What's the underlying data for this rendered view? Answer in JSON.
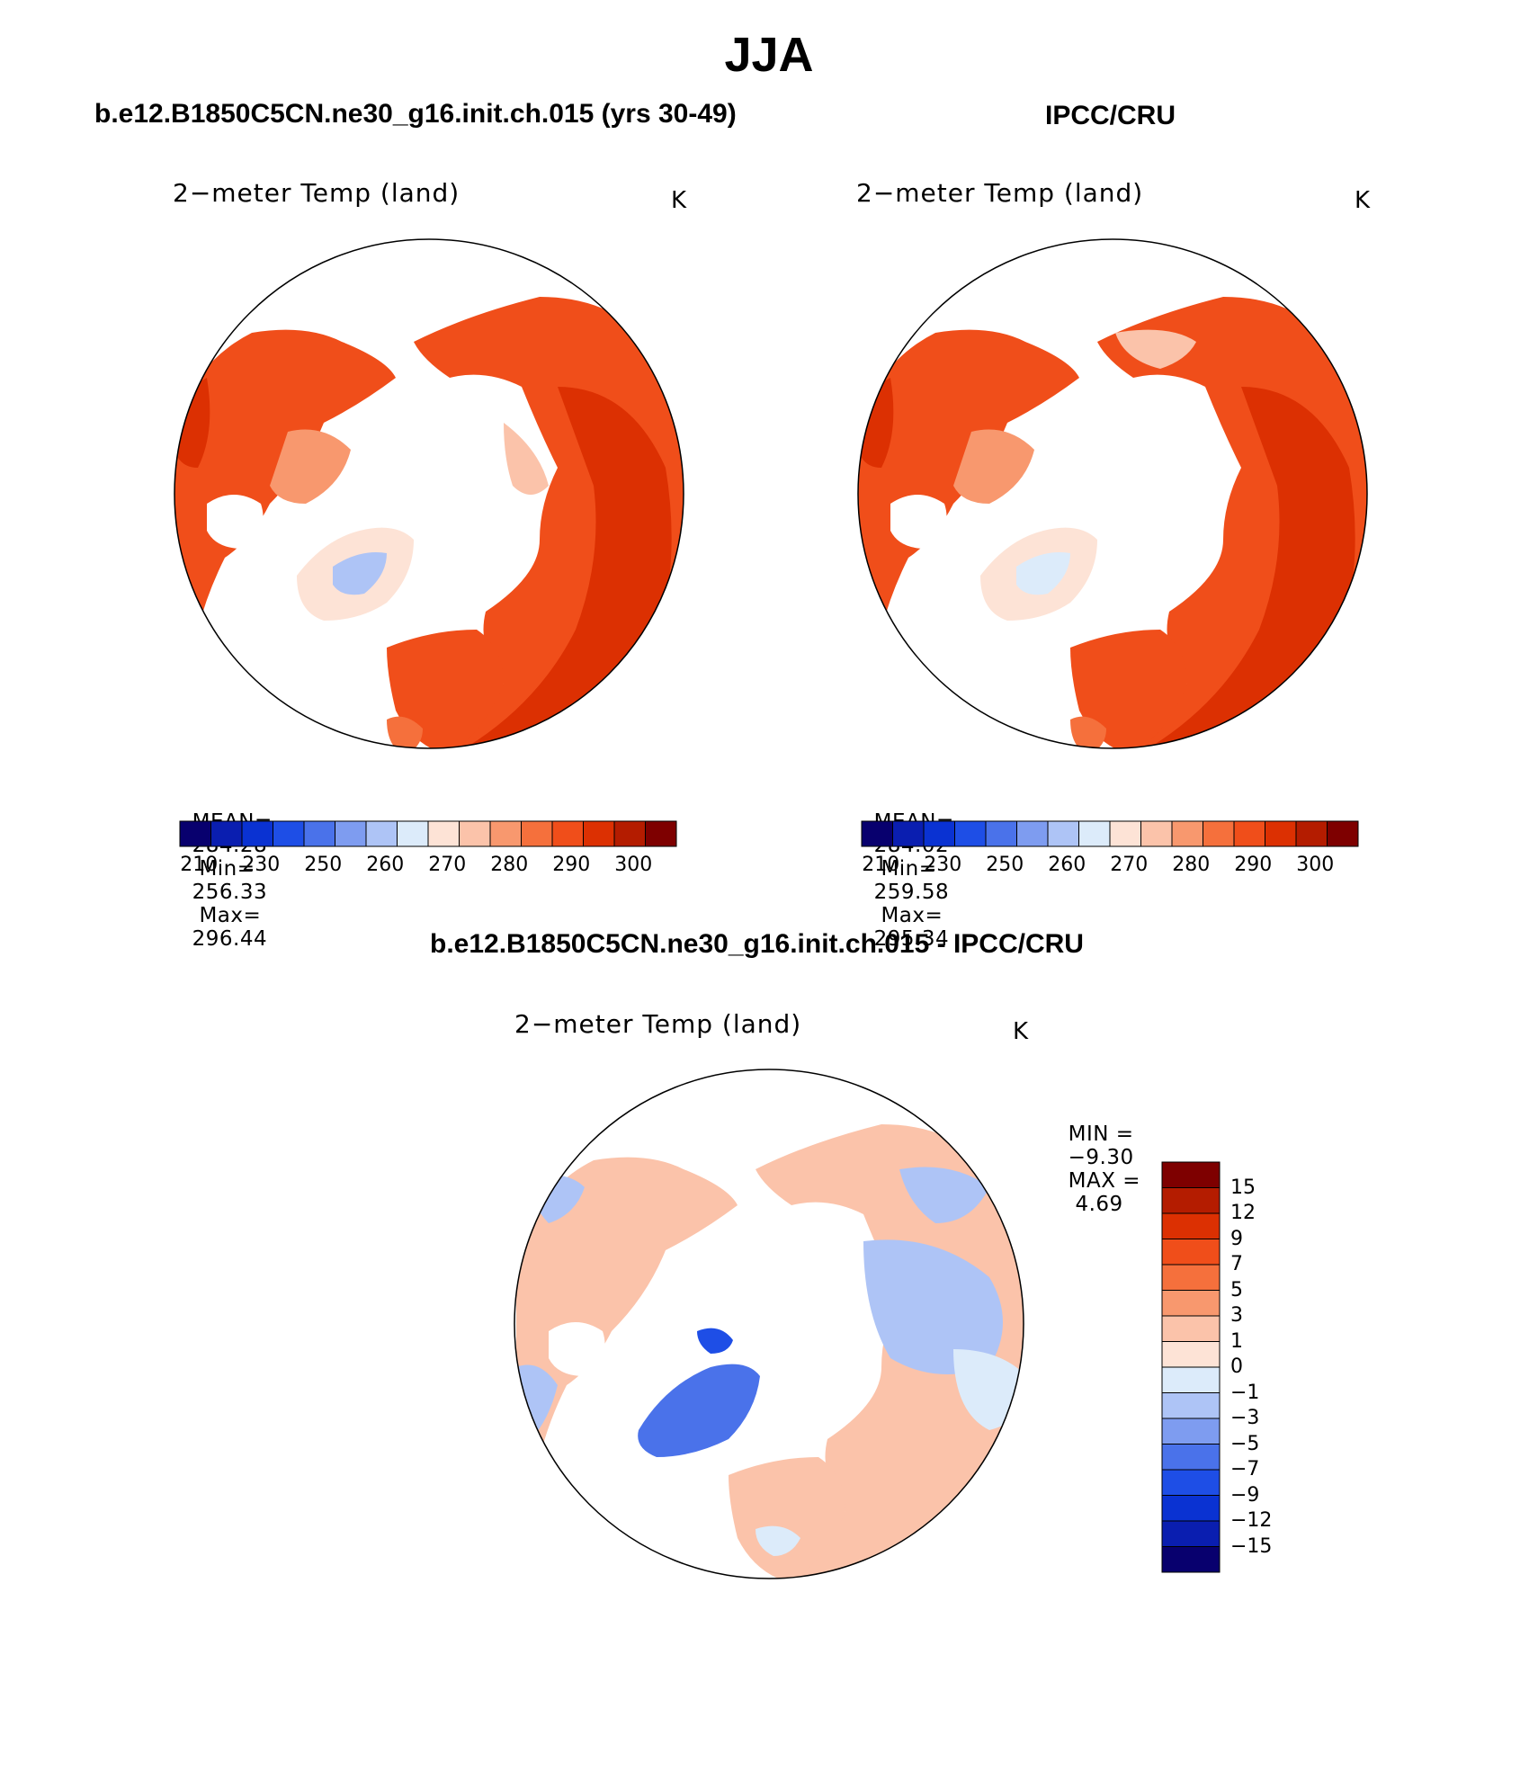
{
  "title": "JJA",
  "panels": [
    {
      "case_title": "b.e12.B1850C5CN.ne30_g16.init.ch.015 (yrs 30-49)",
      "variable": "2−meter Temp (land)",
      "units": "K",
      "stats": {
        "mean_label": "MEAN=",
        "mean": "284.28",
        "min_label": "Min=",
        "min": "256.33",
        "max_label": "Max=",
        "max": "296.44"
      }
    },
    {
      "case_title": "IPCC/CRU",
      "variable": "2−meter Temp (land)",
      "units": "K",
      "stats": {
        "mean_label": "MEAN=",
        "mean": "284.02",
        "min_label": "Min=",
        "min": "259.58",
        "max_label": "Max=",
        "max": "295.34"
      }
    }
  ],
  "colorbar": {
    "colors": [
      "#08006e",
      "#0a1eb0",
      "#0a32d2",
      "#1e4ee6",
      "#4a72ea",
      "#7e9cf0",
      "#aec4f6",
      "#dcebfa",
      "#fde3d6",
      "#fbc3aa",
      "#f8986e",
      "#f5703c",
      "#f04e1a",
      "#dc3002",
      "#b41c00",
      "#7e0000"
    ],
    "ticks": [
      "210",
      "230",
      "250",
      "260",
      "270",
      "280",
      "290",
      "300"
    ]
  },
  "diff": {
    "case_title": "b.e12.B1850C5CN.ne30_g16.init.ch.015 - IPCC/CRU",
    "variable": "2−meter Temp (land)",
    "units": "K",
    "stats": {
      "min_label": "MIN =",
      "min": "−9.30",
      "max_label": "MAX =",
      "max": "4.69"
    },
    "colorbar": {
      "colors": [
        "#7e0000",
        "#b41c00",
        "#dc3002",
        "#f04e1a",
        "#f5703c",
        "#f8986e",
        "#fbc3aa",
        "#fde3d6",
        "#dcebfa",
        "#aec4f6",
        "#7e9cf0",
        "#4a72ea",
        "#1e4ee6",
        "#0a32d2",
        "#0a1eb0",
        "#08006e"
      ],
      "ticks": [
        "15",
        "12",
        "9",
        "7",
        "5",
        "3",
        "1",
        "0",
        "−1",
        "−3",
        "−5",
        "−7",
        "−9",
        "−12",
        "−15"
      ]
    }
  }
}
